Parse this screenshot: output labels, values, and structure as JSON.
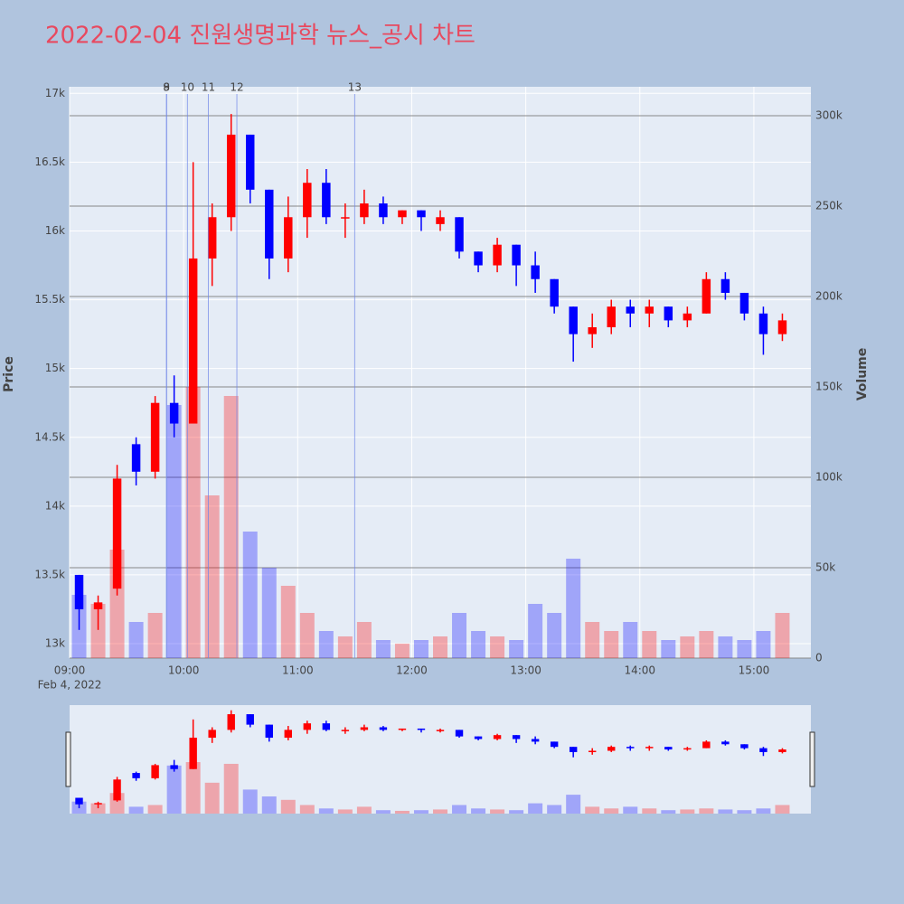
{
  "chart_data": {
    "type": "candlestick",
    "title": "2022-02-04 진원생명과학 뉴스_공시 차트",
    "ylabel": "Price",
    "y2label": "Volume",
    "x_date_label": "Feb 4, 2022",
    "x": [
      "09:00",
      "09:10",
      "09:20",
      "09:30",
      "09:40",
      "09:50",
      "10:00",
      "10:10",
      "10:20",
      "10:30",
      "10:40",
      "10:50",
      "11:00",
      "11:10",
      "11:20",
      "11:30",
      "11:40",
      "11:50",
      "12:00",
      "12:10",
      "12:20",
      "12:30",
      "12:40",
      "12:50",
      "13:00",
      "13:10",
      "13:20",
      "13:30",
      "13:40",
      "13:50",
      "14:00",
      "14:10",
      "14:20",
      "14:30",
      "14:40",
      "14:50",
      "15:00",
      "15:10"
    ],
    "open": [
      13500,
      13250,
      13400,
      14450,
      14250,
      14750,
      14600,
      15800,
      16100,
      16700,
      16300,
      15800,
      16100,
      16350,
      16100,
      16100,
      16200,
      16100,
      16150,
      16050,
      16100,
      15850,
      15750,
      15900,
      15750,
      15650,
      15450,
      15250,
      15300,
      15450,
      15400,
      15450,
      15350,
      15400,
      15650,
      15550,
      15400,
      15250
    ],
    "high": [
      13500,
      13350,
      14300,
      14500,
      14800,
      14950,
      16500,
      16200,
      16850,
      16700,
      16300,
      16250,
      16450,
      16450,
      16200,
      16300,
      16250,
      16150,
      16150,
      16150,
      16100,
      15850,
      15950,
      15900,
      15850,
      15650,
      15450,
      15400,
      15500,
      15500,
      15500,
      15450,
      15450,
      15700,
      15700,
      15550,
      15450,
      15400
    ],
    "low": [
      13100,
      13100,
      13350,
      14150,
      14200,
      14500,
      14600,
      15600,
      16000,
      16200,
      15650,
      15700,
      15950,
      16050,
      15950,
      16050,
      16050,
      16050,
      16000,
      16000,
      15800,
      15700,
      15700,
      15600,
      15550,
      15400,
      15050,
      15150,
      15250,
      15300,
      15300,
      15300,
      15300,
      15400,
      15500,
      15350,
      15100,
      15200
    ],
    "close": [
      13250,
      13300,
      14200,
      14250,
      14750,
      14600,
      15800,
      16100,
      16700,
      16300,
      15800,
      16100,
      16350,
      16100,
      16100,
      16200,
      16100,
      16150,
      16100,
      16100,
      15850,
      15750,
      15900,
      15750,
      15650,
      15450,
      15250,
      15300,
      15450,
      15400,
      15450,
      15350,
      15400,
      15650,
      15550,
      15400,
      15250,
      15350
    ],
    "volume": [
      35000,
      30000,
      60000,
      20000,
      25000,
      140000,
      150000,
      90000,
      145000,
      70000,
      50000,
      40000,
      25000,
      15000,
      12000,
      20000,
      10000,
      8000,
      10000,
      12000,
      25000,
      15000,
      12000,
      10000,
      30000,
      25000,
      55000,
      20000,
      15000,
      20000,
      15000,
      10000,
      12000,
      15000,
      12000,
      10000,
      15000,
      25000
    ],
    "increasing_color": "#ff0000",
    "decreasing_color": "#0000ff",
    "annotation_color": "#6f86e8",
    "annotations": [
      {
        "x": "09:51",
        "text": "8"
      },
      {
        "x": "09:51",
        "text": "9"
      },
      {
        "x": "10:02",
        "text": "10"
      },
      {
        "x": "10:13",
        "text": "11"
      },
      {
        "x": "10:28",
        "text": "12"
      },
      {
        "x": "11:30",
        "text": "13"
      }
    ],
    "xlim": [
      "09:00",
      "15:30"
    ],
    "xticks": [
      "09:00",
      "10:00",
      "11:00",
      "12:00",
      "13:00",
      "14:00",
      "15:00"
    ],
    "ylim": [
      12895,
      17048
    ],
    "yticks": [
      {
        "value": 13000,
        "label": "13k"
      },
      {
        "value": 13500,
        "label": "13.5k"
      },
      {
        "value": 14000,
        "label": "14k"
      },
      {
        "value": 14500,
        "label": "14.5k"
      },
      {
        "value": 15000,
        "label": "15k"
      },
      {
        "value": 15500,
        "label": "15.5k"
      },
      {
        "value": 16000,
        "label": "16k"
      },
      {
        "value": 16500,
        "label": "16.5k"
      },
      {
        "value": 17000,
        "label": "17k"
      }
    ],
    "y2lim": [
      0,
      316000
    ],
    "y2ticks": [
      0,
      {
        "value": 50000,
        "label": "50k"
      },
      {
        "value": 100000,
        "label": "100k"
      },
      {
        "value": 150000,
        "label": "150k"
      },
      {
        "value": 200000,
        "label": "200k"
      },
      {
        "value": 250000,
        "label": "250k"
      },
      {
        "value": 300000,
        "label": "300k"
      }
    ],
    "grid": true,
    "rangeslider": true
  }
}
